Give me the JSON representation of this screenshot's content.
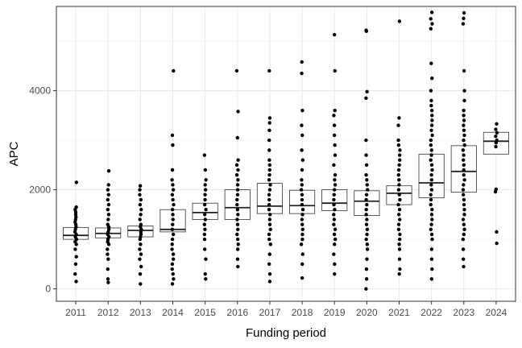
{
  "chart_data": {
    "type": "box",
    "xlabel": "Funding period",
    "ylabel": "APC",
    "ylim": [
      -250,
      5700
    ],
    "yticks": [
      0,
      2000,
      4000
    ],
    "grid": true,
    "categories": [
      "2011",
      "2012",
      "2013",
      "2014",
      "2015",
      "2016",
      "2017",
      "2018",
      "2019",
      "2020",
      "2021",
      "2022",
      "2023",
      "2024"
    ],
    "boxes": [
      {
        "q1": 1000,
        "median": 1080,
        "q3": 1240
      },
      {
        "q1": 1030,
        "median": 1120,
        "q3": 1230
      },
      {
        "q1": 1050,
        "median": 1180,
        "q3": 1270
      },
      {
        "q1": 1150,
        "median": 1200,
        "q3": 1600
      },
      {
        "q1": 1400,
        "median": 1540,
        "q3": 1730
      },
      {
        "q1": 1400,
        "median": 1640,
        "q3": 2000
      },
      {
        "q1": 1520,
        "median": 1670,
        "q3": 2130
      },
      {
        "q1": 1520,
        "median": 1680,
        "q3": 1990
      },
      {
        "q1": 1580,
        "median": 1730,
        "q3": 2000
      },
      {
        "q1": 1480,
        "median": 1770,
        "q3": 1980
      },
      {
        "q1": 1700,
        "median": 1930,
        "q3": 2080
      },
      {
        "q1": 1840,
        "median": 2140,
        "q3": 2720
      },
      {
        "q1": 1950,
        "median": 2370,
        "q3": 2890
      },
      {
        "q1": 2720,
        "median": 2980,
        "q3": 3160
      }
    ],
    "points": [
      [
        150,
        300,
        500,
        650,
        800,
        900,
        950,
        1000,
        1050,
        1100,
        1150,
        1200,
        1250,
        1300,
        1350,
        1400,
        1450,
        1500,
        1550,
        1600,
        1650,
        2150
      ],
      [
        130,
        200,
        400,
        600,
        700,
        800,
        900,
        950,
        1000,
        1050,
        1100,
        1150,
        1200,
        1250,
        1300,
        1400,
        1500,
        1600,
        1700,
        1800,
        1900,
        2000,
        2100,
        2380
      ],
      [
        100,
        300,
        450,
        600,
        700,
        800,
        900,
        1000,
        1050,
        1100,
        1150,
        1200,
        1250,
        1300,
        1400,
        1500,
        1600,
        1700,
        1800,
        1900,
        2000,
        2080
      ],
      [
        100,
        200,
        300,
        400,
        500,
        600,
        700,
        800,
        900,
        1000,
        1100,
        1200,
        1300,
        1400,
        1500,
        1600,
        1700,
        1800,
        1900,
        2000,
        2100,
        2200,
        2400,
        2900,
        3100,
        4400
      ],
      [
        200,
        300,
        600,
        800,
        1000,
        1100,
        1200,
        1300,
        1400,
        1500,
        1600,
        1700,
        1800,
        1900,
        2000,
        2100,
        2200,
        2400,
        2700
      ],
      [
        450,
        600,
        800,
        900,
        1000,
        1100,
        1200,
        1300,
        1400,
        1500,
        1600,
        1700,
        1800,
        1900,
        2000,
        2100,
        2200,
        2300,
        2400,
        2500,
        2600,
        3050,
        3580,
        4400
      ],
      [
        150,
        300,
        500,
        700,
        900,
        1000,
        1100,
        1200,
        1300,
        1400,
        1500,
        1600,
        1700,
        1800,
        1900,
        2000,
        2100,
        2200,
        2300,
        2400,
        2500,
        2600,
        2800,
        3000,
        3200,
        3350,
        3450,
        4400
      ],
      [
        220,
        500,
        700,
        900,
        1000,
        1100,
        1200,
        1300,
        1400,
        1500,
        1600,
        1700,
        1800,
        1900,
        2000,
        2100,
        2200,
        2400,
        2600,
        2800,
        3100,
        3300,
        3600,
        4350,
        4580
      ],
      [
        300,
        500,
        700,
        900,
        1000,
        1100,
        1200,
        1300,
        1400,
        1500,
        1600,
        1700,
        1800,
        1900,
        2000,
        2100,
        2200,
        2300,
        2500,
        2700,
        2900,
        3100,
        3300,
        3500,
        3600,
        4400,
        5130
      ],
      [
        0,
        200,
        400,
        600,
        800,
        900,
        1000,
        1100,
        1200,
        1300,
        1400,
        1500,
        1600,
        1700,
        1800,
        1900,
        2000,
        2100,
        2200,
        2300,
        2500,
        2700,
        3000,
        3850,
        3980,
        5200,
        5220
      ],
      [
        300,
        400,
        600,
        800,
        900,
        1000,
        1100,
        1200,
        1300,
        1400,
        1500,
        1600,
        1700,
        1800,
        1900,
        2000,
        2100,
        2200,
        2300,
        2400,
        2500,
        2600,
        2700,
        2800,
        2900,
        3000,
        3300,
        3450,
        5400
      ],
      [
        200,
        400,
        600,
        800,
        1000,
        1100,
        1200,
        1300,
        1400,
        1500,
        1600,
        1700,
        1800,
        1900,
        2000,
        2100,
        2200,
        2300,
        2400,
        2500,
        2600,
        2700,
        2800,
        2900,
        3000,
        3100,
        3200,
        3300,
        3400,
        3500,
        3600,
        3700,
        3800,
        4000,
        4250,
        4550,
        5250,
        5350,
        5450,
        5580
      ],
      [
        450,
        600,
        800,
        1000,
        1100,
        1200,
        1300,
        1400,
        1500,
        1600,
        1700,
        1800,
        1900,
        2000,
        2100,
        2200,
        2300,
        2400,
        2500,
        2600,
        2700,
        2800,
        2900,
        3000,
        3100,
        3200,
        3300,
        3400,
        3500,
        3600,
        3800,
        4000,
        4400,
        5350,
        5460,
        5570
      ],
      [
        920,
        1150,
        1960,
        2010,
        2870,
        2950,
        3000,
        3080,
        3150,
        3220,
        3330
      ]
    ]
  }
}
